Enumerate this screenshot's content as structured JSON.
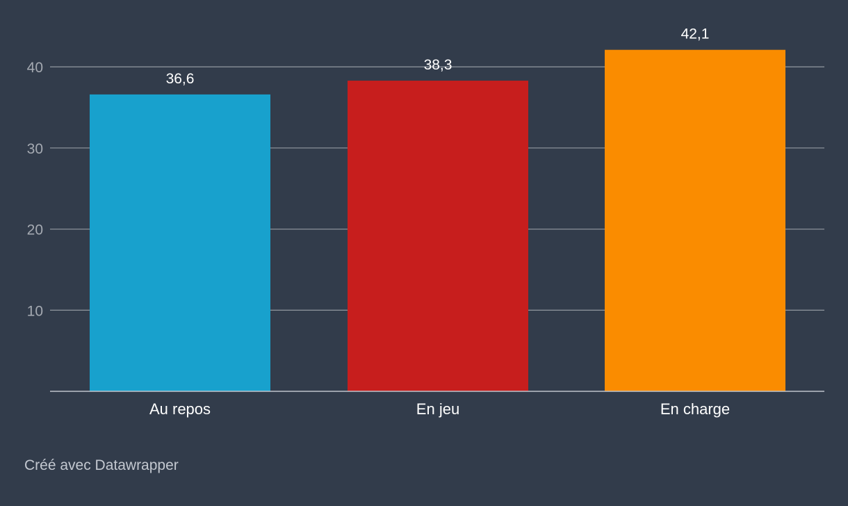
{
  "chart_data": {
    "type": "bar",
    "categories": [
      "Au repos",
      "En jeu",
      "En charge"
    ],
    "values": [
      36.6,
      38.3,
      42.1
    ],
    "value_labels": [
      "36,6",
      "38,3",
      "42,1"
    ],
    "bar_colors": [
      "#18a1cd",
      "#c71e1d",
      "#fa8c00"
    ],
    "title": "",
    "xlabel": "",
    "ylabel": "",
    "ylim": [
      0,
      40
    ],
    "yticks": [
      10,
      20,
      30,
      40
    ],
    "grid": true,
    "legend": "none"
  },
  "footer": {
    "credit": "Créé avec Datawrapper"
  },
  "colors": {
    "background": "#323c4b",
    "grid": "#8a9099",
    "axis": "#bfc4cc",
    "tick_text": "#a4a9b1",
    "label_text": "#ffffff"
  }
}
